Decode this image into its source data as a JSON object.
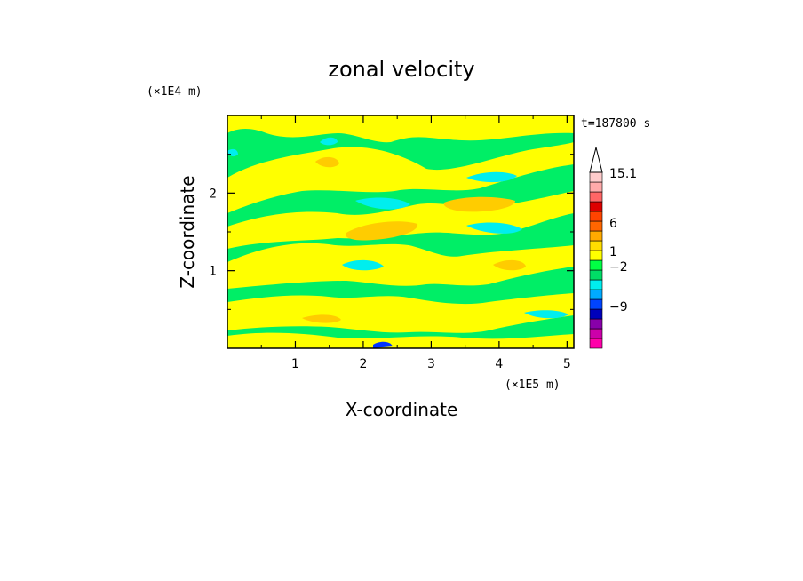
{
  "chart_data": {
    "type": "heatmap",
    "title": "zonal velocity",
    "xlabel": "X-coordinate",
    "ylabel": "Z-coordinate",
    "x_unit": "(×1E5 m)",
    "y_unit": "(×1E4 m)",
    "time_label": "t=187800 s",
    "xlim": [
      0,
      5.1
    ],
    "ylim": [
      0,
      3.0
    ],
    "x_ticks": [
      "1",
      "2",
      "3",
      "4",
      "5"
    ],
    "y_ticks": [
      "1",
      "2"
    ],
    "colorbar": {
      "tick_labels": [
        "15.1",
        "6",
        "1",
        "−2",
        "−9"
      ],
      "colors": [
        "#ff00aa",
        "#cc00aa",
        "#8800aa",
        "#0000bb",
        "#0044ff",
        "#00aaff",
        "#00eeee",
        "#00dd66",
        "#00ff44",
        "#ffff00",
        "#ffdd00",
        "#ffaa00",
        "#ff6600",
        "#ff4400",
        "#dd0000",
        "#ff6666",
        "#ffaaaa",
        "#ffcccc"
      ]
    },
    "field_palette": {
      "green": "#00ee66",
      "yellow": "#ffff00",
      "cyan": "#00eeee",
      "orange": "#ffcc00",
      "blue": "#0033ff"
    }
  }
}
